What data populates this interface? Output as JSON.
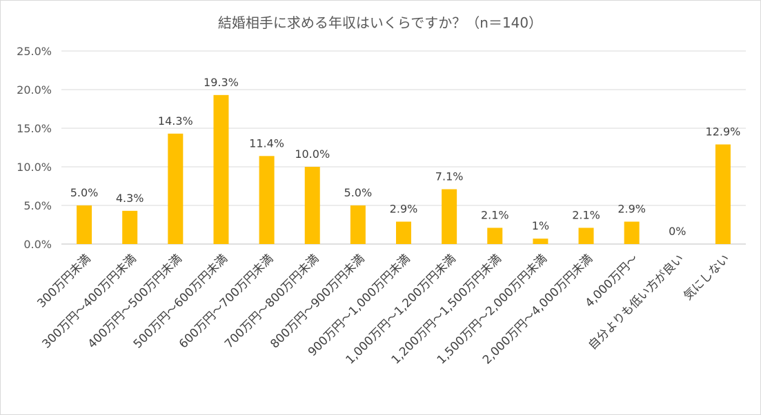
{
  "chart_data": {
    "type": "bar",
    "title": "結婚相手に求める年収はいくらですか？（n＝140）",
    "xlabel": "",
    "ylabel": "",
    "ylim": [
      0,
      25
    ],
    "yticks": [
      "0.0%",
      "5.0%",
      "10.0%",
      "15.0%",
      "20.0%",
      "25.0%"
    ],
    "ytick_values": [
      0,
      5,
      10,
      15,
      20,
      25
    ],
    "grid": true,
    "legend": "none",
    "bar_color": "#FFC000",
    "categories": [
      "300万円未満",
      "300万円～400万円未満",
      "400万円～500万円未満",
      "500万円～600万円未満",
      "600万円～700万円未満",
      "700万円～800万円未満",
      "800万円～900万円未満",
      "900万円～1,000万円未満",
      "1,000万円～1,200万円未満",
      "1,200万円～1,500万円未満",
      "1,500万円～2,000万円未満",
      "2,000万円～4,000万円未満",
      "4,000万円～",
      "自分よりも低い方が良い",
      "気にしない"
    ],
    "values": [
      5.0,
      4.3,
      14.3,
      19.3,
      11.4,
      10.0,
      5.0,
      2.9,
      7.1,
      2.1,
      0.7,
      2.1,
      2.9,
      0,
      12.9
    ],
    "data_labels": [
      "5.0%",
      "4.3%",
      "14.3%",
      "19.3%",
      "11.4%",
      "10.0%",
      "5.0%",
      "2.9%",
      "7.1%",
      "2.1%",
      "1%",
      "2.1%",
      "2.9%",
      "0%",
      "12.9%"
    ]
  }
}
